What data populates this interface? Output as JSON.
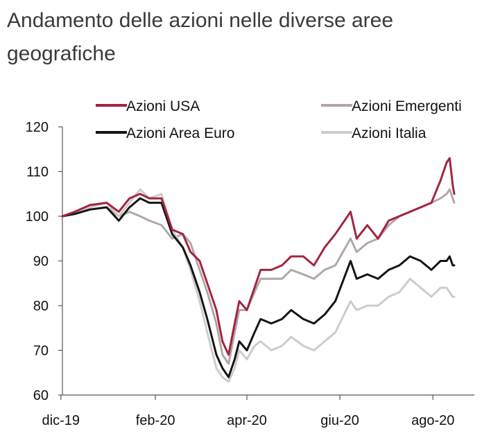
{
  "title": "Andamento delle azioni nelle diverse aree geografiche",
  "chart_data": {
    "type": "line",
    "title": "Andamento delle azioni nelle diverse aree geografiche",
    "xlabel": "",
    "ylabel": "",
    "ylim": [
      60,
      120
    ],
    "yticks": [
      60,
      70,
      80,
      90,
      100,
      110,
      120
    ],
    "xlim": [
      "2019-12-02",
      "2020-08-15"
    ],
    "x_ticks": [
      {
        "label": "dic-19",
        "date": "2019-12-01"
      },
      {
        "label": "feb-20",
        "date": "2020-02-01"
      },
      {
        "label": "apr-20",
        "date": "2020-04-01"
      },
      {
        "label": "giu-20",
        "date": "2020-06-01"
      },
      {
        "label": "ago-20",
        "date": "2020-08-01"
      }
    ],
    "grid": false,
    "legend_position": "top",
    "series": [
      {
        "name": "Azioni USA",
        "color": "#a3243f",
        "points": [
          [
            "2019-12-02",
            100
          ],
          [
            "2019-12-10",
            101
          ],
          [
            "2019-12-20",
            102.5
          ],
          [
            "2019-12-31",
            103
          ],
          [
            "2020-01-08",
            101
          ],
          [
            "2020-01-15",
            104
          ],
          [
            "2020-01-22",
            105
          ],
          [
            "2020-01-28",
            104
          ],
          [
            "2020-02-05",
            104
          ],
          [
            "2020-02-12",
            97
          ],
          [
            "2020-02-19",
            96
          ],
          [
            "2020-02-24",
            92
          ],
          [
            "2020-03-01",
            90
          ],
          [
            "2020-03-06",
            85
          ],
          [
            "2020-03-12",
            79
          ],
          [
            "2020-03-16",
            72
          ],
          [
            "2020-03-20",
            69
          ],
          [
            "2020-03-24",
            76
          ],
          [
            "2020-03-27",
            81
          ],
          [
            "2020-04-01",
            79
          ],
          [
            "2020-04-06",
            84
          ],
          [
            "2020-04-10",
            88
          ],
          [
            "2020-04-17",
            88
          ],
          [
            "2020-04-24",
            89
          ],
          [
            "2020-04-30",
            91
          ],
          [
            "2020-05-08",
            91
          ],
          [
            "2020-05-15",
            89
          ],
          [
            "2020-05-22",
            93
          ],
          [
            "2020-05-29",
            96
          ],
          [
            "2020-06-08",
            101
          ],
          [
            "2020-06-12",
            95
          ],
          [
            "2020-06-19",
            98
          ],
          [
            "2020-06-26",
            95
          ],
          [
            "2020-07-03",
            99
          ],
          [
            "2020-07-10",
            100
          ],
          [
            "2020-07-17",
            101
          ],
          [
            "2020-07-24",
            102
          ],
          [
            "2020-07-31",
            103
          ],
          [
            "2020-08-06",
            108
          ],
          [
            "2020-08-10",
            112
          ],
          [
            "2020-08-12",
            113
          ],
          [
            "2020-08-14",
            107
          ],
          [
            "2020-08-15",
            105
          ]
        ]
      },
      {
        "name": "Azioni Emergenti",
        "color": "#b3a6a6",
        "points": [
          [
            "2019-12-02",
            100
          ],
          [
            "2019-12-10",
            101
          ],
          [
            "2019-12-20",
            101.5
          ],
          [
            "2019-12-31",
            102
          ],
          [
            "2020-01-08",
            100
          ],
          [
            "2020-01-15",
            101
          ],
          [
            "2020-01-22",
            100
          ],
          [
            "2020-01-28",
            99
          ],
          [
            "2020-02-05",
            98
          ],
          [
            "2020-02-12",
            95
          ],
          [
            "2020-02-19",
            96
          ],
          [
            "2020-02-24",
            94
          ],
          [
            "2020-03-01",
            88
          ],
          [
            "2020-03-06",
            83
          ],
          [
            "2020-03-12",
            76
          ],
          [
            "2020-03-16",
            69
          ],
          [
            "2020-03-20",
            67
          ],
          [
            "2020-03-24",
            74
          ],
          [
            "2020-03-27",
            79
          ],
          [
            "2020-04-01",
            79
          ],
          [
            "2020-04-06",
            83
          ],
          [
            "2020-04-10",
            86
          ],
          [
            "2020-04-17",
            86
          ],
          [
            "2020-04-24",
            86
          ],
          [
            "2020-04-30",
            88
          ],
          [
            "2020-05-08",
            87
          ],
          [
            "2020-05-15",
            86
          ],
          [
            "2020-05-22",
            88
          ],
          [
            "2020-05-29",
            89
          ],
          [
            "2020-06-08",
            95
          ],
          [
            "2020-06-12",
            92
          ],
          [
            "2020-06-19",
            94
          ],
          [
            "2020-06-26",
            95
          ],
          [
            "2020-07-03",
            98
          ],
          [
            "2020-07-10",
            100
          ],
          [
            "2020-07-17",
            101
          ],
          [
            "2020-07-24",
            102
          ],
          [
            "2020-07-31",
            103
          ],
          [
            "2020-08-06",
            104
          ],
          [
            "2020-08-10",
            105
          ],
          [
            "2020-08-12",
            106
          ],
          [
            "2020-08-14",
            104
          ],
          [
            "2020-08-15",
            103
          ]
        ]
      },
      {
        "name": "Azioni Area Euro",
        "color": "#141414",
        "points": [
          [
            "2019-12-02",
            100
          ],
          [
            "2019-12-10",
            100.5
          ],
          [
            "2019-12-20",
            101.5
          ],
          [
            "2019-12-31",
            102
          ],
          [
            "2020-01-08",
            99
          ],
          [
            "2020-01-15",
            102
          ],
          [
            "2020-01-22",
            104
          ],
          [
            "2020-01-28",
            103
          ],
          [
            "2020-02-05",
            103
          ],
          [
            "2020-02-12",
            96
          ],
          [
            "2020-02-19",
            93
          ],
          [
            "2020-02-24",
            89
          ],
          [
            "2020-03-01",
            83
          ],
          [
            "2020-03-06",
            77
          ],
          [
            "2020-03-12",
            69
          ],
          [
            "2020-03-16",
            66
          ],
          [
            "2020-03-20",
            64
          ],
          [
            "2020-03-24",
            68
          ],
          [
            "2020-03-27",
            72
          ],
          [
            "2020-04-01",
            70
          ],
          [
            "2020-04-06",
            74
          ],
          [
            "2020-04-10",
            77
          ],
          [
            "2020-04-17",
            76
          ],
          [
            "2020-04-24",
            77
          ],
          [
            "2020-04-30",
            79
          ],
          [
            "2020-05-08",
            77
          ],
          [
            "2020-05-15",
            76
          ],
          [
            "2020-05-22",
            78
          ],
          [
            "2020-05-29",
            81
          ],
          [
            "2020-06-08",
            90
          ],
          [
            "2020-06-12",
            86
          ],
          [
            "2020-06-19",
            87
          ],
          [
            "2020-06-26",
            86
          ],
          [
            "2020-07-03",
            88
          ],
          [
            "2020-07-10",
            89
          ],
          [
            "2020-07-17",
            91
          ],
          [
            "2020-07-24",
            90
          ],
          [
            "2020-07-31",
            88
          ],
          [
            "2020-08-06",
            90
          ],
          [
            "2020-08-10",
            90
          ],
          [
            "2020-08-12",
            91
          ],
          [
            "2020-08-14",
            89
          ],
          [
            "2020-08-15",
            89
          ]
        ]
      },
      {
        "name": "Azioni Italia",
        "color": "#cccccc",
        "points": [
          [
            "2019-12-02",
            100
          ],
          [
            "2019-12-10",
            100.5
          ],
          [
            "2019-12-20",
            102
          ],
          [
            "2019-12-31",
            103
          ],
          [
            "2020-01-08",
            100
          ],
          [
            "2020-01-15",
            103
          ],
          [
            "2020-01-22",
            106
          ],
          [
            "2020-01-28",
            104
          ],
          [
            "2020-02-05",
            105
          ],
          [
            "2020-02-12",
            97
          ],
          [
            "2020-02-19",
            93
          ],
          [
            "2020-02-24",
            88
          ],
          [
            "2020-03-01",
            81
          ],
          [
            "2020-03-06",
            74
          ],
          [
            "2020-03-12",
            66
          ],
          [
            "2020-03-16",
            64
          ],
          [
            "2020-03-20",
            63
          ],
          [
            "2020-03-24",
            66
          ],
          [
            "2020-03-27",
            70
          ],
          [
            "2020-04-01",
            68
          ],
          [
            "2020-04-06",
            71
          ],
          [
            "2020-04-10",
            72
          ],
          [
            "2020-04-17",
            70
          ],
          [
            "2020-04-24",
            71
          ],
          [
            "2020-04-30",
            73
          ],
          [
            "2020-05-08",
            71
          ],
          [
            "2020-05-15",
            70
          ],
          [
            "2020-05-22",
            72
          ],
          [
            "2020-05-29",
            74
          ],
          [
            "2020-06-08",
            81
          ],
          [
            "2020-06-12",
            79
          ],
          [
            "2020-06-19",
            80
          ],
          [
            "2020-06-26",
            80
          ],
          [
            "2020-07-03",
            82
          ],
          [
            "2020-07-10",
            83
          ],
          [
            "2020-07-17",
            86
          ],
          [
            "2020-07-24",
            84
          ],
          [
            "2020-07-31",
            82
          ],
          [
            "2020-08-06",
            84
          ],
          [
            "2020-08-10",
            84
          ],
          [
            "2020-08-12",
            83
          ],
          [
            "2020-08-14",
            82
          ],
          [
            "2020-08-15",
            82
          ]
        ]
      }
    ]
  }
}
